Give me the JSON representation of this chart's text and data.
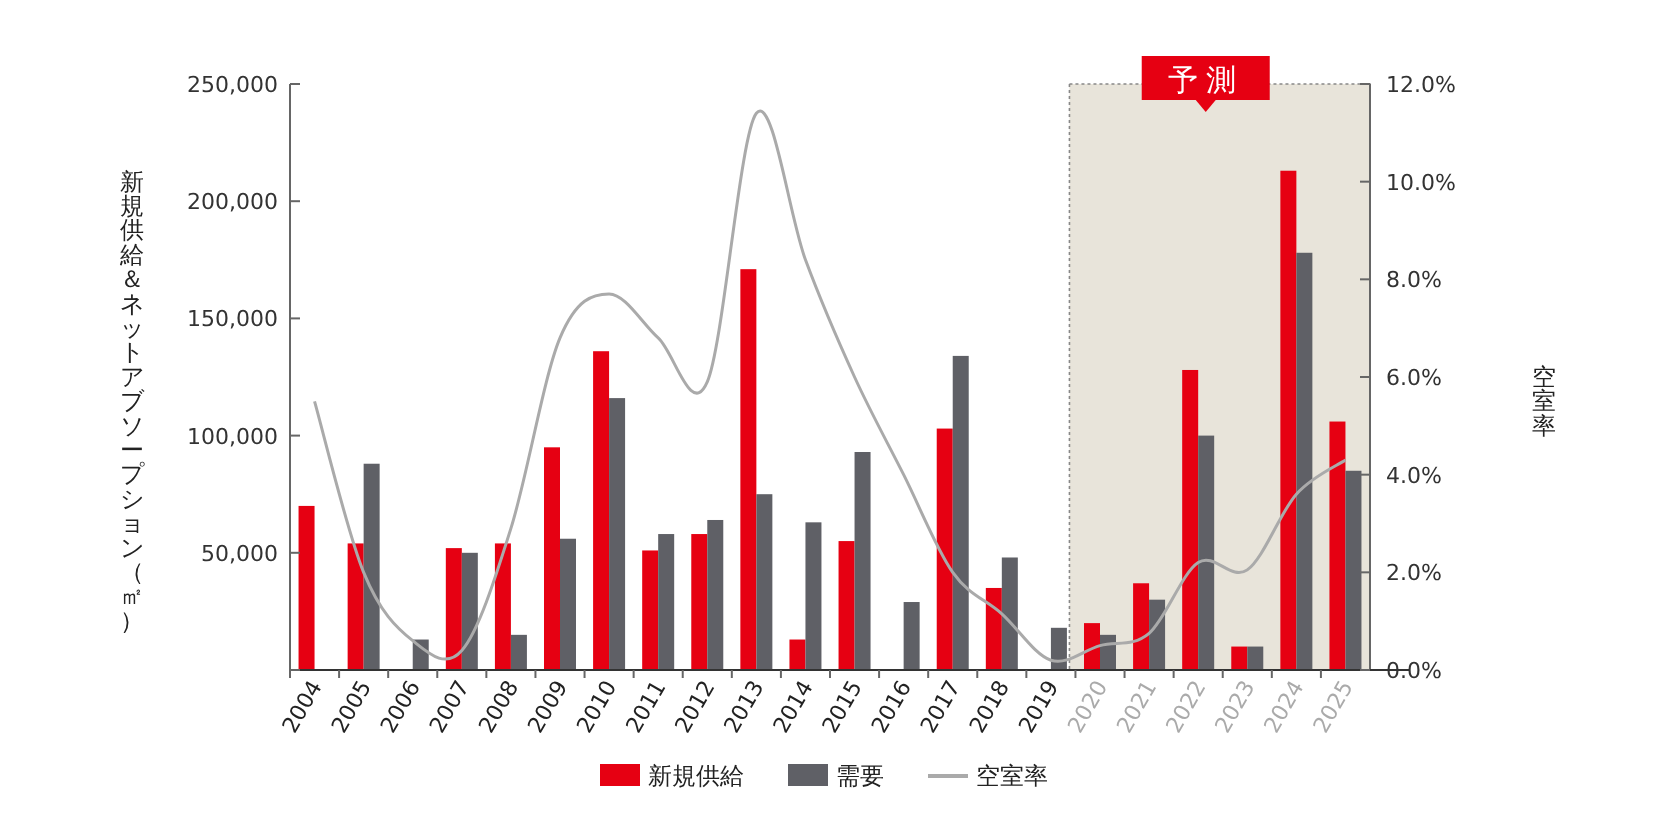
{
  "chart_data": {
    "type": "bar",
    "ylabel": "新規供給＆ネットアブソープション（㎡）",
    "y2label": "空室率",
    "categories": [
      "2004",
      "2005",
      "2006",
      "2007",
      "2008",
      "2009",
      "2010",
      "2011",
      "2012",
      "2013",
      "2014",
      "2015",
      "2016",
      "2017",
      "2018",
      "2019",
      "2020",
      "2021",
      "2022",
      "2023",
      "2024",
      "2025"
    ],
    "series": [
      {
        "name": "新規供給",
        "color": "#e60012",
        "values": [
          70000,
          54000,
          null,
          52000,
          54000,
          95000,
          136000,
          51000,
          58000,
          171000,
          13000,
          55000,
          null,
          103000,
          35000,
          null,
          20000,
          37000,
          128000,
          10000,
          213000,
          106000
        ]
      },
      {
        "name": "需要",
        "color": "#5f6066",
        "values": [
          null,
          88000,
          13000,
          50000,
          15000,
          56000,
          116000,
          58000,
          64000,
          75000,
          63000,
          93000,
          29000,
          134000,
          48000,
          18000,
          15000,
          30000,
          100000,
          10000,
          178000,
          85000
        ]
      },
      {
        "name": "空室率",
        "type": "line",
        "axis": "y2",
        "color": "#aaaaaa",
        "values": [
          5.5,
          2.0,
          0.6,
          0.4,
          2.9,
          6.8,
          7.7,
          6.8,
          5.9,
          11.4,
          8.4,
          6.0,
          4.0,
          2.0,
          1.15,
          0.2,
          0.5,
          0.75,
          2.2,
          2.05,
          3.6,
          4.3
        ]
      }
    ],
    "ylim": [
      0,
      250000
    ],
    "yticks": [
      {
        "value": 0,
        "label": null
      },
      {
        "value": 50000,
        "label": "50,000"
      },
      {
        "value": 100000,
        "label": "100,000"
      },
      {
        "value": 150000,
        "label": "150,000"
      },
      {
        "value": 200000,
        "label": "200,000"
      },
      {
        "value": 250000,
        "label": "250,000"
      }
    ],
    "y2lim": [
      0,
      12
    ],
    "y2ticks": [
      {
        "value": 0,
        "label": "0.0%"
      },
      {
        "value": 2,
        "label": "2.0%"
      },
      {
        "value": 4,
        "label": "4.0%"
      },
      {
        "value": 6,
        "label": "6.0%"
      },
      {
        "value": 8,
        "label": "8.0%"
      },
      {
        "value": 10,
        "label": "10.0%"
      },
      {
        "value": 12,
        "label": "12.0%"
      }
    ],
    "bands": [
      {
        "axis": "x",
        "from": "2020",
        "to": "2025",
        "label": "予測",
        "color": "#e8e4da"
      }
    ],
    "legend": "bottom",
    "grid": false,
    "marker": "none",
    "line_style": "solid"
  }
}
